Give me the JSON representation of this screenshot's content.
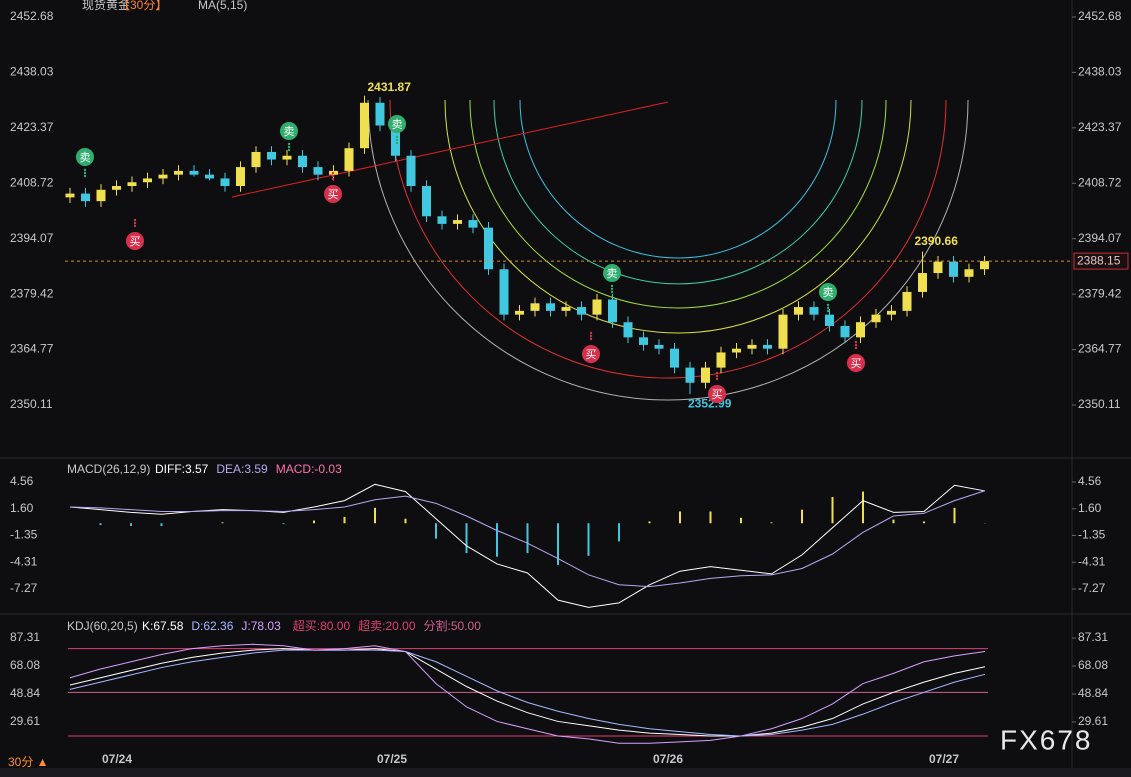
{
  "chart_data": [
    {
      "type": "candlestick",
      "title": "现货黄金",
      "period": "【30分】",
      "indicator": "MA(5,15)",
      "open": [
        2405,
        2406,
        2404,
        2407,
        2408,
        2409,
        2410,
        2411,
        2412,
        2411,
        2410,
        2408,
        2413,
        2417,
        2415,
        2416,
        2413,
        2411,
        2412,
        2418,
        2430,
        2424,
        2416,
        2408,
        2400,
        2398,
        2399,
        2397,
        2386,
        2374,
        2375,
        2377,
        2375,
        2376,
        2374,
        2378,
        2372,
        2368,
        2366,
        2365,
        2360,
        2356,
        2360,
        2364,
        2365,
        2366,
        2365,
        2374,
        2376,
        2374,
        2371,
        2368,
        2372,
        2374,
        2375,
        2380,
        2385,
        2388,
        2384,
        2386
      ],
      "close": [
        2406,
        2404,
        2407,
        2408,
        2409,
        2410,
        2411,
        2412,
        2411,
        2410,
        2408,
        2413,
        2417,
        2415,
        2416,
        2413,
        2411,
        2412,
        2418,
        2430,
        2424,
        2416,
        2408,
        2400,
        2398,
        2399,
        2397,
        2386,
        2374,
        2375,
        2377,
        2375,
        2376,
        2374,
        2378,
        2372,
        2368,
        2366,
        2365,
        2360,
        2356,
        2360,
        2364,
        2365,
        2366,
        2365,
        2374,
        2376,
        2374,
        2371,
        2368,
        2372,
        2374,
        2375,
        2380,
        2385,
        2388,
        2384,
        2386,
        2388.15
      ],
      "high": [
        2407.5,
        2407.5,
        2408.5,
        2409.5,
        2410.5,
        2411.5,
        2412.5,
        2413.5,
        2413.5,
        2412.5,
        2411.5,
        2414.5,
        2418.5,
        2418.5,
        2417.5,
        2417.5,
        2414.5,
        2413.5,
        2419.5,
        2431.87,
        2431.5,
        2425.5,
        2417.5,
        2409.5,
        2401.5,
        2400.5,
        2400.5,
        2398.5,
        2387.5,
        2376.5,
        2378.5,
        2378.5,
        2377.5,
        2377.5,
        2379.5,
        2379.5,
        2373.5,
        2369.5,
        2367.5,
        2366.5,
        2361.5,
        2361.5,
        2365.5,
        2366.5,
        2367.5,
        2367.5,
        2375.5,
        2377.5,
        2377.5,
        2375.5,
        2372.5,
        2373.5,
        2375.5,
        2376.5,
        2381.5,
        2390.66,
        2389.5,
        2389.5,
        2387.5,
        2389.5
      ],
      "low": [
        2403.5,
        2402.5,
        2402.5,
        2405.5,
        2406.5,
        2407.5,
        2408.5,
        2409.5,
        2410.5,
        2409.5,
        2406.5,
        2406.5,
        2411.5,
        2413.5,
        2413.5,
        2411.5,
        2409.5,
        2409.5,
        2410.5,
        2416.5,
        2422.5,
        2414.5,
        2406.5,
        2398.5,
        2396.5,
        2396.5,
        2395.5,
        2384.5,
        2372.5,
        2372.5,
        2373.5,
        2373.5,
        2373.5,
        2372.5,
        2372.5,
        2370.5,
        2366.5,
        2364.5,
        2363.5,
        2358.5,
        2352.99,
        2354.5,
        2358.5,
        2362.5,
        2363.5,
        2363.5,
        2363.5,
        2372.5,
        2372.5,
        2369.5,
        2366.5,
        2366.5,
        2370.5,
        2372.5,
        2373.5,
        2378.5,
        2383.5,
        2382.5,
        2382.5,
        2384.5
      ],
      "ylim": [
        2336.9,
        2457.17
      ],
      "yticks": [
        2452.68,
        2438.03,
        2423.37,
        2408.72,
        2394.07,
        2379.42,
        2364.77,
        2350.11
      ],
      "colors": {
        "up": "#f0e050",
        "down": "#40c8e0"
      },
      "date_labels": [
        "07/24",
        "07/25",
        "07/26",
        "07/27"
      ],
      "signals": {
        "sell": "卖",
        "buy": "买"
      }
    },
    {
      "type": "macd",
      "title": "MACD(26,12,9)",
      "ylim": [
        -9.81,
        6.99
      ],
      "yticks": [
        4.56,
        {
          "value": 1.6,
          "label": "1.60"
        },
        -1.35,
        -4.31,
        -7.27
      ],
      "bar_colors": {
        "up": "#f0e050",
        "down": "#40c8e0"
      },
      "series": [
        {
          "name": "DIFF:3.57",
          "color": "#ffffff",
          "values": [
            1.8,
            1.5,
            1.2,
            1.0,
            1.3,
            1.5,
            1.4,
            1.2,
            1.8,
            2.5,
            4.3,
            3.5,
            0.5,
            -2.5,
            -4.5,
            -5.5,
            -8.5,
            -9.3,
            -8.8,
            -6.8,
            -5.3,
            -4.8,
            -5.2,
            -5.6,
            -3.5,
            -0.5,
            2.5,
            1.2,
            1.3,
            4.2,
            3.57
          ]
        },
        {
          "name": "DEA:3.59",
          "color": "#b8a8f0",
          "values": [
            1.8,
            1.7,
            1.5,
            1.3,
            1.3,
            1.4,
            1.4,
            1.3,
            1.5,
            1.8,
            2.6,
            3.0,
            2.2,
            0.8,
            -0.8,
            -2.2,
            -3.9,
            -5.7,
            -6.8,
            -7.0,
            -6.6,
            -6.1,
            -5.8,
            -5.7,
            -5.0,
            -3.4,
            -1.0,
            0.8,
            1.1,
            2.5,
            3.59
          ]
        },
        {
          "name": "MACD:-0.03",
          "color": "#ff70b0",
          "kind": "bar",
          "values": [
            0,
            -0.2,
            -0.3,
            -0.3,
            0,
            0.1,
            0,
            -0.1,
            0.3,
            0.7,
            1.7,
            0.5,
            -1.7,
            -3.3,
            -3.7,
            -3.3,
            -4.6,
            -3.6,
            -2.0,
            0.2,
            1.3,
            1.3,
            0.6,
            0.1,
            1.5,
            2.9,
            3.5,
            0.4,
            0.2,
            1.7,
            -0.03
          ]
        }
      ]
    },
    {
      "type": "line",
      "title": "KDJ(60,20,5)",
      "ylim": [
        10.38,
        101.05
      ],
      "yticks": [
        87.31,
        68.08,
        48.84,
        29.61
      ],
      "series": [
        {
          "name": "K:67.58",
          "color": "#ffffff",
          "values": [
            55,
            60,
            65,
            70,
            74,
            77,
            79,
            80,
            79,
            79,
            80,
            78,
            66,
            54,
            44,
            36,
            30,
            27,
            24,
            22,
            21,
            20,
            20,
            22,
            26,
            32,
            42,
            50,
            57,
            63,
            67.58
          ]
        },
        {
          "name": "D:62.36",
          "color": "#a8b8ff",
          "values": [
            52,
            57,
            62,
            67,
            71,
            74,
            77,
            79,
            79,
            79,
            79,
            78,
            71,
            61,
            51,
            43,
            37,
            32,
            28,
            25,
            23,
            21,
            20,
            21,
            24,
            28,
            35,
            43,
            50,
            57,
            62.36
          ]
        },
        {
          "name": "J:78.03",
          "color": "#d8a0ff",
          "values": [
            60,
            66,
            71,
            76,
            80,
            82,
            83,
            82,
            79,
            80,
            82,
            78,
            56,
            40,
            30,
            25,
            20,
            18,
            15,
            15,
            16,
            17,
            20,
            25,
            32,
            42,
            56,
            63,
            71,
            75,
            78.03
          ]
        }
      ],
      "levels": [
        {
          "label": "超买:80.00",
          "value": 80,
          "color": "#e04070"
        },
        {
          "label": "超卖:20.00",
          "value": 20,
          "color": "#e04070"
        },
        {
          "label": "分割:50.00",
          "value": 50,
          "color": "#d06090"
        }
      ]
    }
  ],
  "watermark": "FX678",
  "period_button": "30分 ▲"
}
